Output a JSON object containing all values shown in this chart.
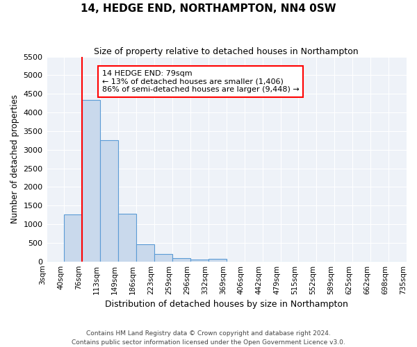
{
  "title": "14, HEDGE END, NORTHAMPTON, NN4 0SW",
  "subtitle": "Size of property relative to detached houses in Northampton",
  "xlabel": "Distribution of detached houses by size in Northampton",
  "ylabel": "Number of detached properties",
  "footer1": "Contains HM Land Registry data © Crown copyright and database right 2024.",
  "footer2": "Contains public sector information licensed under the Open Government Licence v3.0.",
  "annotation_line1": "14 HEDGE END: 79sqm",
  "annotation_line2": "← 13% of detached houses are smaller (1,406)",
  "annotation_line3": "86% of semi-detached houses are larger (9,448) →",
  "bar_values": [
    0,
    1270,
    4330,
    3260,
    1280,
    460,
    205,
    90,
    50,
    65,
    0,
    0,
    0,
    0,
    0,
    0,
    0,
    0,
    0,
    0
  ],
  "bin_labels": [
    "3sqm",
    "40sqm",
    "76sqm",
    "113sqm",
    "149sqm",
    "186sqm",
    "223sqm",
    "259sqm",
    "296sqm",
    "332sqm",
    "369sqm",
    "406sqm",
    "442sqm",
    "479sqm",
    "515sqm",
    "552sqm",
    "589sqm",
    "625sqm",
    "662sqm",
    "698sqm",
    "735sqm"
  ],
  "bar_color": "#c9d9ec",
  "bar_edge_color": "#5b9bd5",
  "red_line_bin_index": 2,
  "ylim": [
    0,
    5500
  ],
  "yticks": [
    0,
    500,
    1000,
    1500,
    2000,
    2500,
    3000,
    3500,
    4000,
    4500,
    5000,
    5500
  ]
}
